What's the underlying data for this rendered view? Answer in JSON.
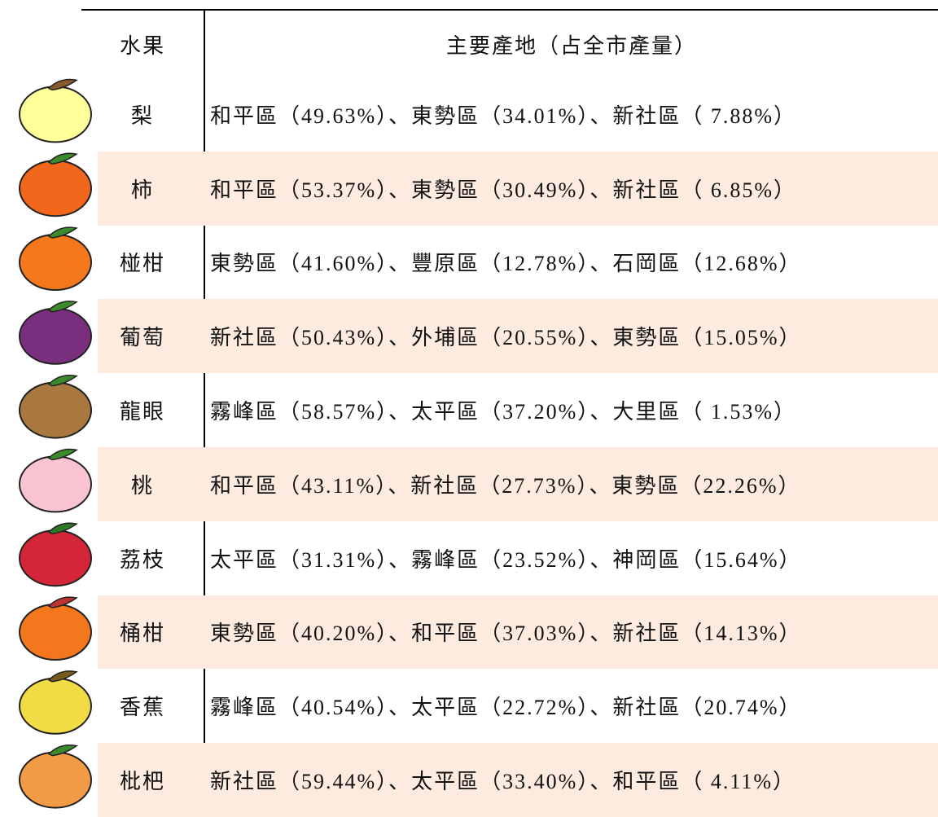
{
  "table": {
    "header": [
      "水果",
      "主要產地（占全市產量）"
    ],
    "rows": [
      [
        "梨",
        "和平區（49.63%）、東勢區（34.01%）、新社區（ 7.88%）"
      ],
      [
        "柿",
        "和平區（53.37%）、東勢區（30.49%）、新社區（ 6.85%）"
      ],
      [
        "椪柑",
        "東勢區（41.60%）、豐原區（12.78%）、石岡區（12.68%）"
      ],
      [
        "葡萄",
        "新社區（50.43%）、外埔區（20.55%）、東勢區（15.05%）"
      ],
      [
        "龍眼",
        "霧峰區（58.57%）、太平區（37.20%）、大里區（ 1.53%）"
      ],
      [
        "桃",
        "和平區（43.11%）、新社區（27.73%）、東勢區（22.26%）"
      ],
      [
        "荔枝",
        "太平區（31.31%）、霧峰區（23.52%）、神岡區（15.64%）"
      ],
      [
        "桶柑",
        "東勢區（40.20%）、和平區（37.03%）、新社區（14.13%）"
      ],
      [
        "香蕉",
        "霧峰區（40.54%）、太平區（22.72%）、新社區（20.74%）"
      ],
      [
        "枇杷",
        "新社區（59.44%）、太平區（33.40%）、和平區（ 4.11%）"
      ]
    ]
  }
}
